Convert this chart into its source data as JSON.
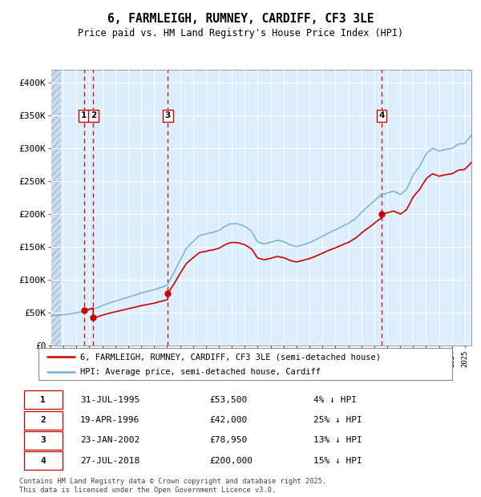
{
  "title_line1": "6, FARMLEIGH, RUMNEY, CARDIFF, CF3 3LE",
  "title_line2": "Price paid vs. HM Land Registry's House Price Index (HPI)",
  "ylim": [
    0,
    420000
  ],
  "yticks": [
    0,
    50000,
    100000,
    150000,
    200000,
    250000,
    300000,
    350000,
    400000
  ],
  "ytick_labels": [
    "£0",
    "£50K",
    "£100K",
    "£150K",
    "£200K",
    "£250K",
    "£300K",
    "£350K",
    "£400K"
  ],
  "sale_year_floats": [
    1995.583,
    1996.3,
    2002.056,
    2018.575
  ],
  "sale_prices": [
    53500,
    42000,
    78950,
    200000
  ],
  "sale_labels": [
    "1",
    "2",
    "3",
    "4"
  ],
  "hpi_color": "#6baed6",
  "sale_color": "#cc0000",
  "vline_color": "#cc0000",
  "chart_bg": "#ddeeff",
  "hatch_color": "#bbbbbb",
  "legend_label_sale": "6, FARMLEIGH, RUMNEY, CARDIFF, CF3 3LE (semi-detached house)",
  "legend_label_hpi": "HPI: Average price, semi-detached house, Cardiff",
  "table_rows": [
    [
      "1",
      "31-JUL-1995",
      "£53,500",
      "4% ↓ HPI"
    ],
    [
      "2",
      "19-APR-1996",
      "£42,000",
      "25% ↓ HPI"
    ],
    [
      "3",
      "23-JAN-2002",
      "£78,950",
      "13% ↓ HPI"
    ],
    [
      "4",
      "27-JUL-2018",
      "£200,000",
      "15% ↓ HPI"
    ]
  ],
  "footer_text": "Contains HM Land Registry data © Crown copyright and database right 2025.\nThis data is licensed under the Open Government Licence v3.0.",
  "xlim_start": 1993.0,
  "xlim_end": 2025.5
}
